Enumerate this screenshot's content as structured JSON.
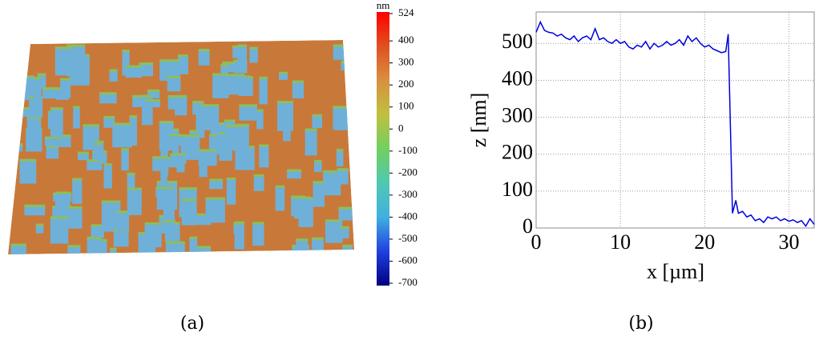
{
  "chart_data": [
    {
      "type": "surface",
      "caption": "(a)",
      "colorbar_label": "nm",
      "zlim": [
        -700,
        524
      ],
      "zticks": [
        524,
        400,
        300,
        200,
        100,
        0,
        -100,
        -200,
        -300,
        -400,
        -500,
        -600,
        -700
      ],
      "colormap": [
        "#000080",
        "#2040e0",
        "#40b0e0",
        "#50c8b0",
        "#70d060",
        "#c0c040",
        "#d89040",
        "#e05020",
        "#ff0000"
      ]
    },
    {
      "type": "line",
      "caption": "(b)",
      "xlabel": "x [µm]",
      "ylabel": "z [nm]",
      "x": [
        0,
        0.5,
        1,
        1.5,
        2,
        2.5,
        3,
        3.5,
        4,
        4.5,
        5,
        5.5,
        6,
        6.5,
        7,
        7.5,
        8,
        8.5,
        9,
        9.5,
        10,
        10.5,
        11,
        11.5,
        12,
        12.5,
        13,
        13.5,
        14,
        14.5,
        15,
        15.5,
        16,
        16.5,
        17,
        17.5,
        18,
        18.5,
        19,
        19.5,
        20,
        20.5,
        21,
        21.5,
        22,
        22.5,
        22.8,
        23.3,
        23.7,
        24,
        24.5,
        25,
        25.5,
        26,
        26.5,
        27,
        27.5,
        28,
        28.5,
        29,
        29.5,
        30,
        30.5,
        31,
        31.5,
        32,
        32.5,
        33
      ],
      "series": [
        {
          "color": "#0000dd",
          "values": [
            530,
            558,
            535,
            530,
            528,
            520,
            525,
            515,
            510,
            520,
            505,
            515,
            520,
            510,
            540,
            510,
            515,
            505,
            500,
            510,
            500,
            505,
            490,
            485,
            495,
            490,
            505,
            485,
            500,
            490,
            495,
            505,
            495,
            500,
            510,
            495,
            520,
            505,
            515,
            500,
            490,
            495,
            485,
            480,
            475,
            478,
            525,
            40,
            75,
            40,
            45,
            30,
            35,
            20,
            25,
            15,
            30,
            25,
            30,
            20,
            25,
            18,
            22,
            15,
            20,
            5,
            25,
            10
          ]
        }
      ],
      "xlim": [
        0,
        33
      ],
      "ylim": [
        0,
        585
      ],
      "xticks": [
        0,
        10,
        20,
        30
      ],
      "yticks": [
        0,
        100,
        200,
        300,
        400,
        500
      ],
      "grid": true
    }
  ]
}
